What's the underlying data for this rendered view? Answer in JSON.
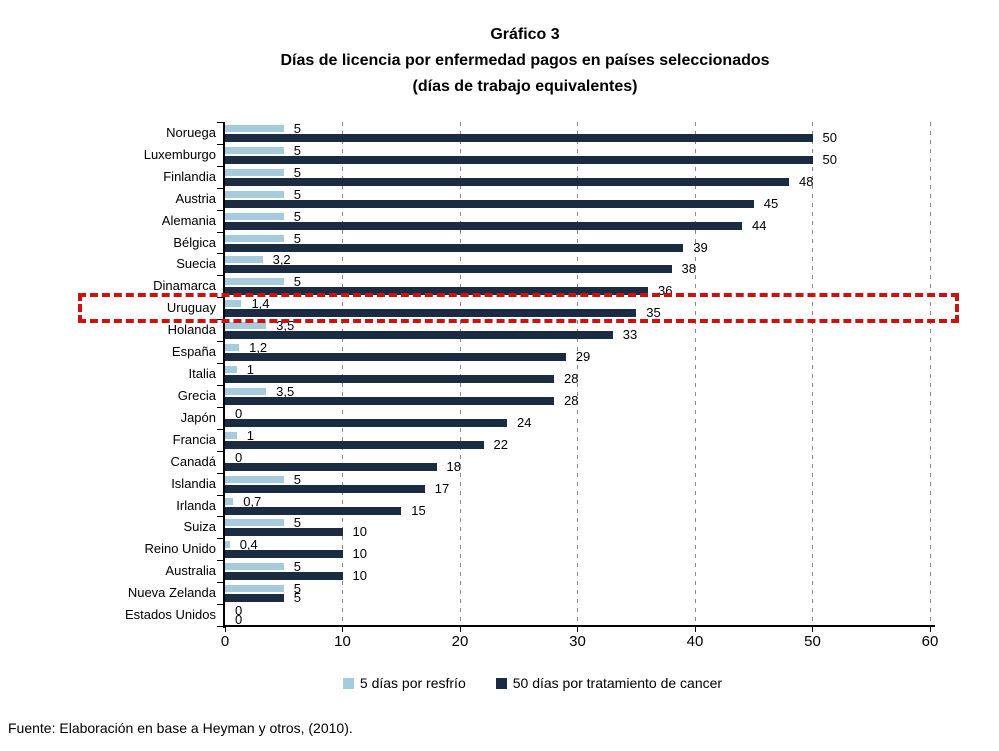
{
  "title": {
    "line1": "Gráfico 3",
    "line2": "Días de licencia por enfermedad pagos en países seleccionados",
    "line3": "(días de trabajo equivalentes)"
  },
  "source_note": "Fuente: Elaboración en base a Heyman y otros, (2010).",
  "colors": {
    "cold_series": "#A5CBDD",
    "cancer_series": "#1B2B42",
    "highlight_red": "#CC1111",
    "gridline": "#8A8A8A",
    "axis": "#000000"
  },
  "legend": {
    "items": [
      {
        "label": "5 días por resfrío",
        "color": "#A5CBDD"
      },
      {
        "label": "50 días por tratamiento de cancer",
        "color": "#1B2B42"
      }
    ]
  },
  "chart_data": {
    "type": "bar",
    "orientation": "horizontal",
    "title": "Gráfico 3 — Días de licencia por enfermedad pagos en países seleccionados (días de trabajo equivalentes)",
    "categories": [
      "Noruega",
      "Luxemburgo",
      "Finlandia",
      "Austria",
      "Alemania",
      "Bélgica",
      "Suecia",
      "Dinamarca",
      "Uruguay",
      "Holanda",
      "España",
      "Italia",
      "Grecia",
      "Japón",
      "Francia",
      "Canadá",
      "Islandia",
      "Irlanda",
      "Suiza",
      "Reino Unido",
      "Australia",
      "Nueva Zelanda",
      "Estados Unidos"
    ],
    "series": [
      {
        "name": "5 días por resfrío",
        "color": "#A5CBDD",
        "values": [
          5,
          5,
          5,
          5,
          5,
          5,
          3.2,
          5,
          1.4,
          3.5,
          1.2,
          1,
          3.5,
          0,
          1,
          0,
          5,
          0.7,
          5,
          0.4,
          5,
          5,
          0
        ],
        "value_labels": [
          "5",
          "5",
          "5",
          "5",
          "5",
          "5",
          "3,2",
          "5",
          "1,4",
          "3,5",
          "1,2",
          "1",
          "3,5",
          "0",
          "1",
          "0",
          "5",
          "0,7",
          "5",
          "0,4",
          "5",
          "5",
          "0"
        ]
      },
      {
        "name": "50 días por tratamiento de cancer",
        "color": "#1B2B42",
        "values": [
          50,
          50,
          48,
          45,
          44,
          39,
          38,
          36,
          35,
          33,
          29,
          28,
          28,
          24,
          22,
          18,
          17,
          15,
          10,
          10,
          10,
          5,
          0
        ],
        "value_labels": [
          "50",
          "50",
          "48",
          "45",
          "44",
          "39",
          "38",
          "36",
          "35",
          "33",
          "29",
          "28",
          "28",
          "24",
          "22",
          "18",
          "17",
          "15",
          "10",
          "10",
          "10",
          "5",
          "0"
        ]
      }
    ],
    "xlim": [
      0,
      60
    ],
    "xticks": [
      0,
      10,
      20,
      30,
      40,
      50,
      60
    ],
    "grid": "vertical-dashed",
    "legend_position": "bottom",
    "highlighted_category": "Uruguay"
  }
}
